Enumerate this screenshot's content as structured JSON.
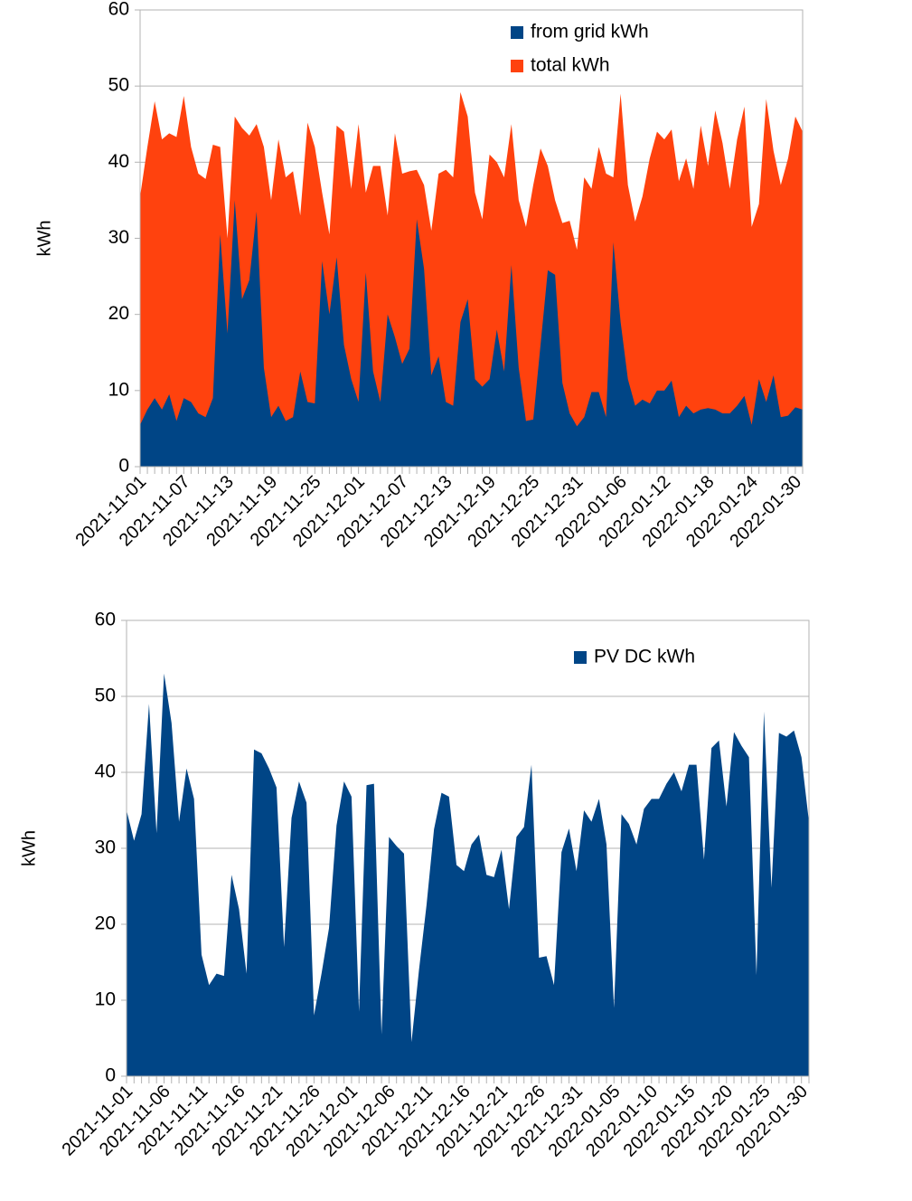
{
  "chart_data": [
    {
      "type": "area",
      "y_label": "kWh",
      "legend": "top-right",
      "grid": true,
      "categories": [
        "2021-11-01",
        null,
        null,
        null,
        null,
        null,
        "2021-11-07",
        null,
        null,
        null,
        null,
        null,
        "2021-11-13",
        null,
        null,
        null,
        null,
        null,
        "2021-11-19",
        null,
        null,
        null,
        null,
        null,
        "2021-11-25",
        null,
        null,
        null,
        null,
        null,
        "2021-12-01",
        null,
        null,
        null,
        null,
        null,
        "2021-12-07",
        null,
        null,
        null,
        null,
        null,
        "2021-12-13",
        null,
        null,
        null,
        null,
        null,
        "2021-12-19",
        null,
        null,
        null,
        null,
        null,
        "2021-12-25",
        null,
        null,
        null,
        null,
        null,
        "2021-12-31",
        null,
        null,
        null,
        null,
        null,
        "2022-01-06",
        null,
        null,
        null,
        null,
        null,
        "2022-01-12",
        null,
        null,
        null,
        null,
        null,
        "2022-01-18",
        null,
        null,
        null,
        null,
        null,
        "2022-01-24",
        null,
        null,
        null,
        null,
        null,
        "2022-01-30",
        null
      ],
      "ylim": [
        0,
        60
      ],
      "yticks": [
        0,
        10,
        20,
        30,
        40,
        50,
        60
      ],
      "series": [
        {
          "name": "from grid kWh",
          "color": "#004586",
          "values": [
            5.5,
            7.5,
            9,
            7.5,
            9.5,
            6,
            9,
            8.5,
            7,
            6.5,
            9,
            30.5,
            17.5,
            35,
            22,
            24.5,
            33.5,
            13,
            6.5,
            8,
            6,
            6.5,
            12.5,
            8.5,
            8.3,
            27,
            20,
            27.5,
            16,
            11.5,
            8.5,
            25.5,
            12.5,
            8.5,
            20,
            17,
            13.5,
            15.5,
            32.5,
            26,
            12,
            14.5,
            8.5,
            8,
            19,
            22,
            11.5,
            10.5,
            11.5,
            18,
            12.5,
            26.5,
            13,
            6,
            6.2,
            16,
            25.8,
            25.2,
            11,
            7,
            5.3,
            6.5,
            9.8,
            9.8,
            6.5,
            29.5,
            19,
            11.5,
            8,
            8.8,
            8.3,
            10,
            10,
            11.3,
            6.5,
            8,
            7,
            7.5,
            7.7,
            7.5,
            7,
            7,
            8,
            9.3,
            5.5,
            11.5,
            8.5,
            12,
            6.5,
            6.7,
            7.8,
            7.5
          ]
        },
        {
          "name": "total kWh",
          "color": "#ff420e",
          "values": [
            35.5,
            42,
            48,
            43,
            43.8,
            43.3,
            48.7,
            42,
            38.5,
            37.8,
            42.3,
            42,
            30,
            46,
            44.5,
            43.5,
            45,
            42,
            35,
            43,
            38,
            38.8,
            33,
            45.2,
            42,
            36,
            30.5,
            44.8,
            44,
            36.5,
            45,
            36,
            39.5,
            39.5,
            33,
            43.8,
            38.5,
            38.8,
            39,
            37,
            31,
            38.5,
            39,
            38,
            49.2,
            46,
            36,
            32.5,
            41,
            40,
            38,
            45,
            35,
            31.5,
            37,
            41.8,
            39.5,
            35,
            32,
            32.3,
            28.5,
            38,
            36.5,
            42,
            38.5,
            38,
            49,
            37,
            32.2,
            35.5,
            40.5,
            44,
            43,
            44.3,
            37.5,
            40.5,
            36.5,
            44.8,
            39.5,
            46.8,
            42.5,
            36.5,
            43,
            47.3,
            31.5,
            34.5,
            48.3,
            41.5,
            37,
            40.5,
            46,
            44
          ]
        }
      ]
    },
    {
      "type": "area",
      "y_label": "kWh",
      "legend": "top-right",
      "grid": true,
      "categories": [
        "2021-11-01",
        null,
        null,
        null,
        null,
        "2021-11-06",
        null,
        null,
        null,
        null,
        "2021-11-11",
        null,
        null,
        null,
        null,
        "2021-11-16",
        null,
        null,
        null,
        null,
        "2021-11-21",
        null,
        null,
        null,
        null,
        "2021-11-26",
        null,
        null,
        null,
        null,
        "2021-12-01",
        null,
        null,
        null,
        null,
        "2021-12-06",
        null,
        null,
        null,
        null,
        "2021-12-11",
        null,
        null,
        null,
        null,
        "2021-12-16",
        null,
        null,
        null,
        null,
        "2021-12-21",
        null,
        null,
        null,
        null,
        "2021-12-26",
        null,
        null,
        null,
        null,
        "2021-12-31",
        null,
        null,
        null,
        null,
        "2022-01-05",
        null,
        null,
        null,
        null,
        "2022-01-10",
        null,
        null,
        null,
        null,
        "2022-01-15",
        null,
        null,
        null,
        null,
        "2022-01-20",
        null,
        null,
        null,
        null,
        "2022-01-25",
        null,
        null,
        null,
        null,
        "2022-01-30",
        null
      ],
      "ylim": [
        0,
        60
      ],
      "yticks": [
        0,
        10,
        20,
        30,
        40,
        50,
        60
      ],
      "series": [
        {
          "name": "PV DC kWh",
          "color": "#004586",
          "values": [
            35,
            31,
            34.5,
            49,
            32,
            53,
            46.5,
            33.5,
            40.5,
            36.5,
            16,
            12,
            13.5,
            13.2,
            26.5,
            22,
            13.5,
            43,
            42.5,
            40.5,
            38,
            17,
            34,
            38.8,
            36,
            8,
            13.5,
            19.5,
            33,
            38.8,
            36.8,
            8.5,
            38.3,
            38.5,
            5.5,
            31.5,
            30.3,
            29.3,
            4.5,
            14,
            22.5,
            32.5,
            37.3,
            36.8,
            27.8,
            27,
            30.5,
            31.8,
            26.5,
            26.2,
            29.8,
            22,
            31.5,
            32.8,
            41,
            15.6,
            15.8,
            12,
            29.5,
            32.6,
            27,
            35,
            33.5,
            36.5,
            30.5,
            9,
            34.5,
            33.2,
            30.5,
            35.2,
            36.5,
            36.5,
            38.5,
            40,
            37.5,
            41,
            41,
            28.5,
            43.2,
            44.2,
            35.5,
            45.3,
            43.5,
            42,
            13.3,
            48,
            24.8,
            45.2,
            44.7,
            45.5,
            42,
            33.5
          ]
        }
      ]
    }
  ]
}
